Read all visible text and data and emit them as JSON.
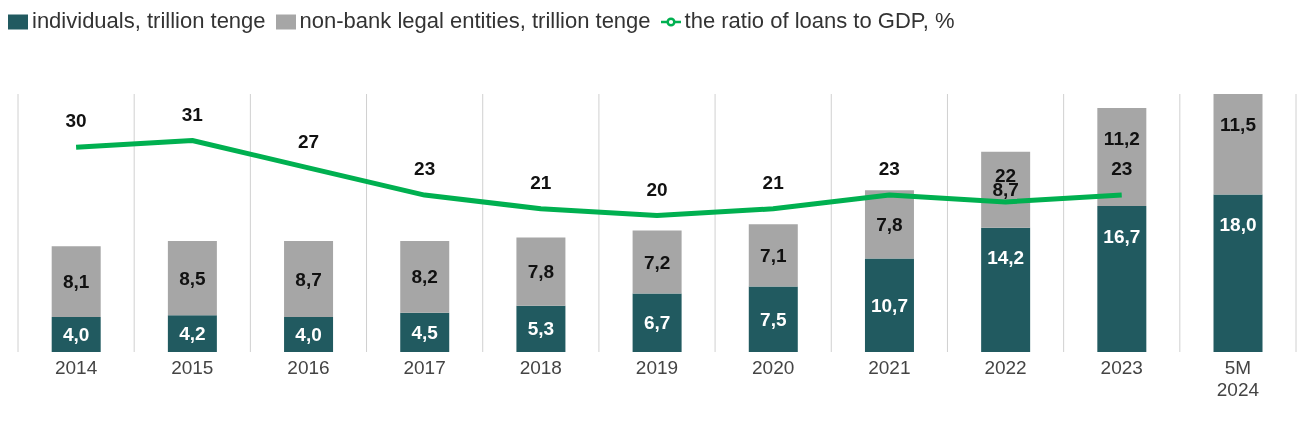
{
  "chart_data": {
    "type": "bar",
    "stacked": true,
    "legend": "top left",
    "grid": "x",
    "categories": [
      "2014",
      "2015",
      "2016",
      "2017",
      "2018",
      "2019",
      "2020",
      "2021",
      "2022",
      "2023",
      "5M 2024"
    ],
    "series": [
      {
        "name": "individuals, trillion tenge",
        "color": "#215a60",
        "values": [
          4.0,
          4.2,
          4.0,
          4.5,
          5.3,
          6.7,
          7.5,
          10.7,
          14.2,
          16.7,
          18.0
        ],
        "value_labels": [
          "4,0",
          "4,2",
          "4,0",
          "4,5",
          "5,3",
          "6,7",
          "7,5",
          "10,7",
          "14,2",
          "16,7",
          "18,0"
        ]
      },
      {
        "name": "non-bank legal entities, trillion tenge",
        "color": "#a6a6a6",
        "values": [
          8.1,
          8.5,
          8.7,
          8.2,
          7.8,
          7.2,
          7.1,
          7.8,
          8.7,
          11.2,
          11.5
        ],
        "value_labels": [
          "8,1",
          "8,5",
          "8,7",
          "8,2",
          "7,8",
          "7,2",
          "7,1",
          "7,8",
          "8,7",
          "11,2",
          "11,5"
        ]
      },
      {
        "name": "the ratio of loans to GDP, %",
        "type": "line",
        "axis": "y2",
        "color": "#00b050",
        "marker": "none",
        "values": [
          30,
          31,
          27,
          23,
          21,
          20,
          21,
          23,
          22,
          23,
          null
        ],
        "value_labels": [
          "30",
          "31",
          "27",
          "23",
          "21",
          "20",
          "21",
          "23",
          "22",
          "23",
          null
        ]
      }
    ]
  }
}
